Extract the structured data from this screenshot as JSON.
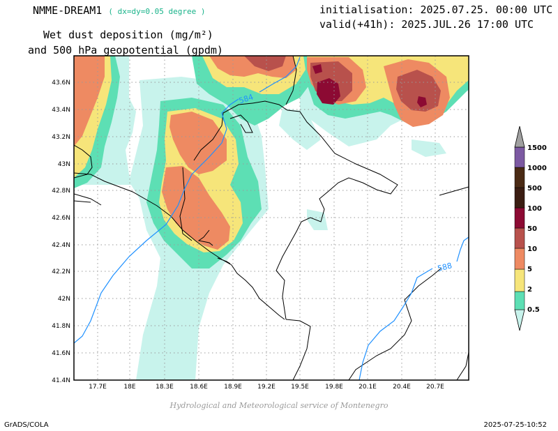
{
  "header": {
    "model": "NMME-DREAM1",
    "resolution": "( dx=dy=0.05 degree )",
    "initialisation": "initialisation: 2025.07.25. 00:00 UTC",
    "valid": "valid(+41h): 2025.JUL.26 17:00 UTC",
    "subtitle_line1": "Wet dust deposition (mg/m²)",
    "subtitle_line2": "and 500 hPa geopotential (gpdm)"
  },
  "map": {
    "lon_ticks": [
      "17.7E",
      "18E",
      "18.3E",
      "18.6E",
      "18.9E",
      "19.2E",
      "19.5E",
      "19.8E",
      "20.1E",
      "20.4E",
      "20.7E"
    ],
    "lat_ticks": [
      "43.6N",
      "43.4N",
      "43.2N",
      "43N",
      "42.8N",
      "42.6N",
      "42.4N",
      "42.2N",
      "42N",
      "41.8N",
      "41.6N",
      "41.4N"
    ],
    "contour_labels": [
      "584",
      "588"
    ],
    "grid": true
  },
  "colorbar": {
    "labels": [
      "0.5",
      "2",
      "5",
      "10",
      "50",
      "100",
      "500",
      "1000",
      "1500"
    ],
    "colors": [
      "#c8f3ec",
      "#5ddfb4",
      "#f6e57a",
      "#ee8a62",
      "#b8514c",
      "#8c0a33",
      "#3b1d12",
      "#4a2a14",
      "#7c59a2",
      "#a0a0a0"
    ]
  },
  "footer": {
    "credit": "Hydrological and Meteorological service of Montenegro",
    "software": "GrADS/COLA",
    "timestamp": "2025-07-25-10:52"
  }
}
